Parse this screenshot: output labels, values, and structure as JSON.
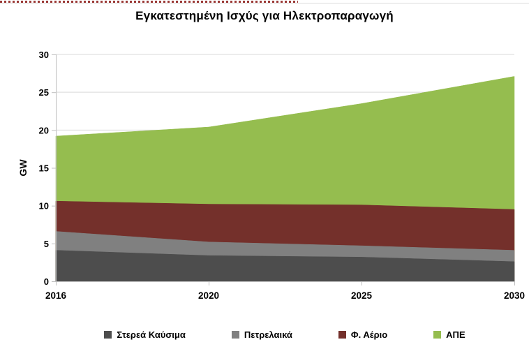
{
  "page": {
    "top_dotted_line_color": "#9C3A37",
    "top_hairline_color": "#DCDCDC"
  },
  "chart_data": {
    "type": "area",
    "stacked": true,
    "title": "Εγκατεστημένη Ισχύς για Ηλεκτροπαραγωγή",
    "xlabel": "",
    "ylabel": "GW",
    "categories": [
      "2016",
      "2020",
      "2025",
      "2030"
    ],
    "series": [
      {
        "name": "Στερεά Καύσιμα",
        "color": "#4D4D4D",
        "values": [
          4.1,
          3.4,
          3.2,
          2.6
        ]
      },
      {
        "name": "Πετρελαικά",
        "color": "#808080",
        "values": [
          2.5,
          1.8,
          1.5,
          1.5
        ]
      },
      {
        "name": "Φ. Αέριο",
        "color": "#74302B",
        "values": [
          4.0,
          5.0,
          5.4,
          5.4
        ]
      },
      {
        "name": "ΑΠΕ",
        "color": "#95BD4F",
        "values": [
          8.6,
          10.2,
          13.4,
          17.6
        ]
      }
    ],
    "cumulative_totals": [
      19.2,
      20.4,
      23.5,
      27.1
    ],
    "ylim": [
      0,
      30
    ],
    "y_ticks": [
      0,
      5,
      10,
      15,
      20,
      25,
      30
    ],
    "grid": true,
    "legend_position": "bottom",
    "gridline_color": "#D9D9D9",
    "axis_color": "#BFBFBF",
    "text_color": "#000000"
  }
}
